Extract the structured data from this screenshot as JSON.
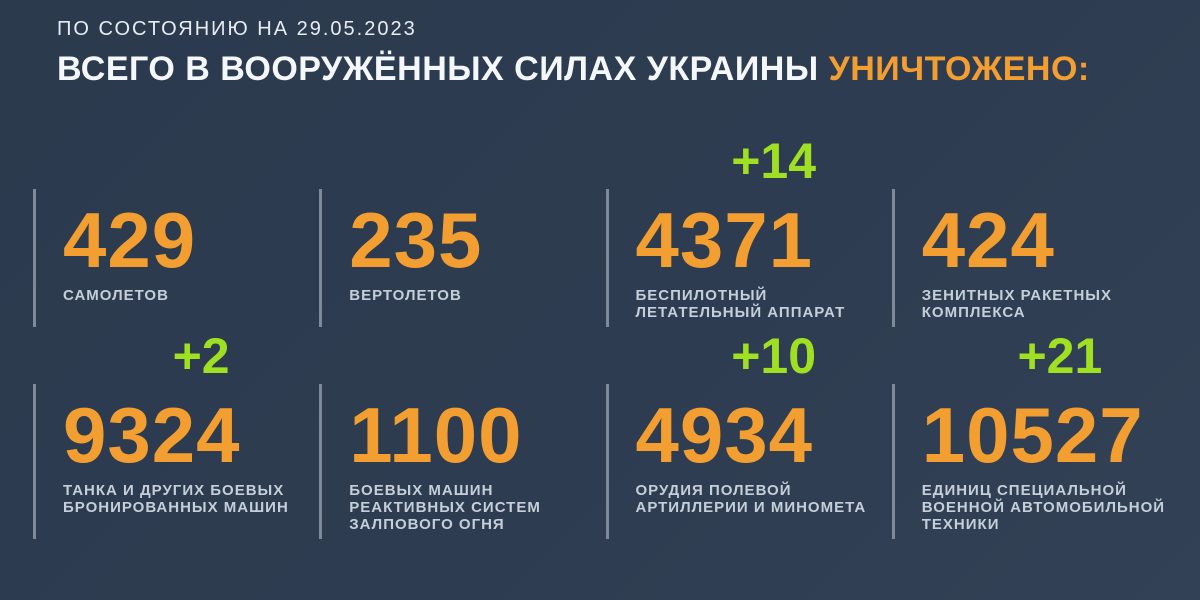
{
  "header": {
    "date_line": "ПО СОСТОЯНИЮ НА 29.05.2023",
    "headline_main": "ВСЕГО В ВООРУЖЁННЫХ СИЛАХ УКРАИНЫ ",
    "headline_accent": "УНИЧТОЖЕНО:"
  },
  "colors": {
    "background": "#2e3c51",
    "number_orange": "#f29e31",
    "delta_green": "#9fe122",
    "label_gray": "#c6cfd9",
    "divider_gray": "#7f8999",
    "headline_white": "#f4f7fb"
  },
  "stats": {
    "cards": [
      {
        "value": "429",
        "delta": "",
        "label": [
          "САМОЛЕТОВ"
        ]
      },
      {
        "value": "235",
        "delta": "",
        "label": [
          "ВЕРТОЛЕТОВ"
        ]
      },
      {
        "value": "4371",
        "delta": "+14",
        "label": [
          "БЕСПИЛОТНЫЙ",
          "ЛЕТАТЕЛЬНЫЙ АППАРАТ"
        ]
      },
      {
        "value": "424",
        "delta": "",
        "label": [
          "ЗЕНИТНЫХ РАКЕТНЫХ",
          "КОМПЛЕКСА"
        ]
      },
      {
        "value": "9324",
        "delta": "+2",
        "label": [
          "ТАНКА И ДРУГИХ БОЕВЫХ",
          "БРОНИРОВАННЫХ МАШИН"
        ]
      },
      {
        "value": "1100",
        "delta": "",
        "label": [
          "БОЕВЫХ МАШИН",
          "РЕАКТИВНЫХ СИСТЕМ",
          "ЗАЛПОВОГО ОГНЯ"
        ]
      },
      {
        "value": "4934",
        "delta": "+10",
        "label": [
          "ОРУДИЯ ПОЛЕВОЙ",
          "АРТИЛЛЕРИИ И МИНОМЕТА"
        ]
      },
      {
        "value": "10527",
        "delta": "+21",
        "label": [
          "ЕДИНИЦ СПЕЦИАЛЬНОЙ",
          "ВОЕННОЙ АВТОМОБИЛЬНОЙ",
          "ТЕХНИКИ"
        ]
      }
    ]
  },
  "chart_data": {
    "type": "table",
    "title": "ВСЕГО В ВООРУЖЁННЫХ СИЛАХ УКРАИНЫ УНИЧТОЖЕНО:",
    "subtitle": "ПО СОСТОЯНИЮ НА 29.05.2023",
    "categories": [
      "самолетов",
      "вертолетов",
      "беспилотный летательный аппарат",
      "зенитных ракетных комплекса",
      "танка и других боевых бронированных машин",
      "боевых машин реактивных систем залпового огня",
      "орудия полевой артиллерии и миномета",
      "единиц специальной военной автомобильной техники"
    ],
    "values": [
      429,
      235,
      4371,
      424,
      9324,
      1100,
      4934,
      10527
    ],
    "deltas": [
      null,
      null,
      14,
      null,
      2,
      null,
      10,
      21
    ],
    "legend_position": "none",
    "grid": false
  }
}
